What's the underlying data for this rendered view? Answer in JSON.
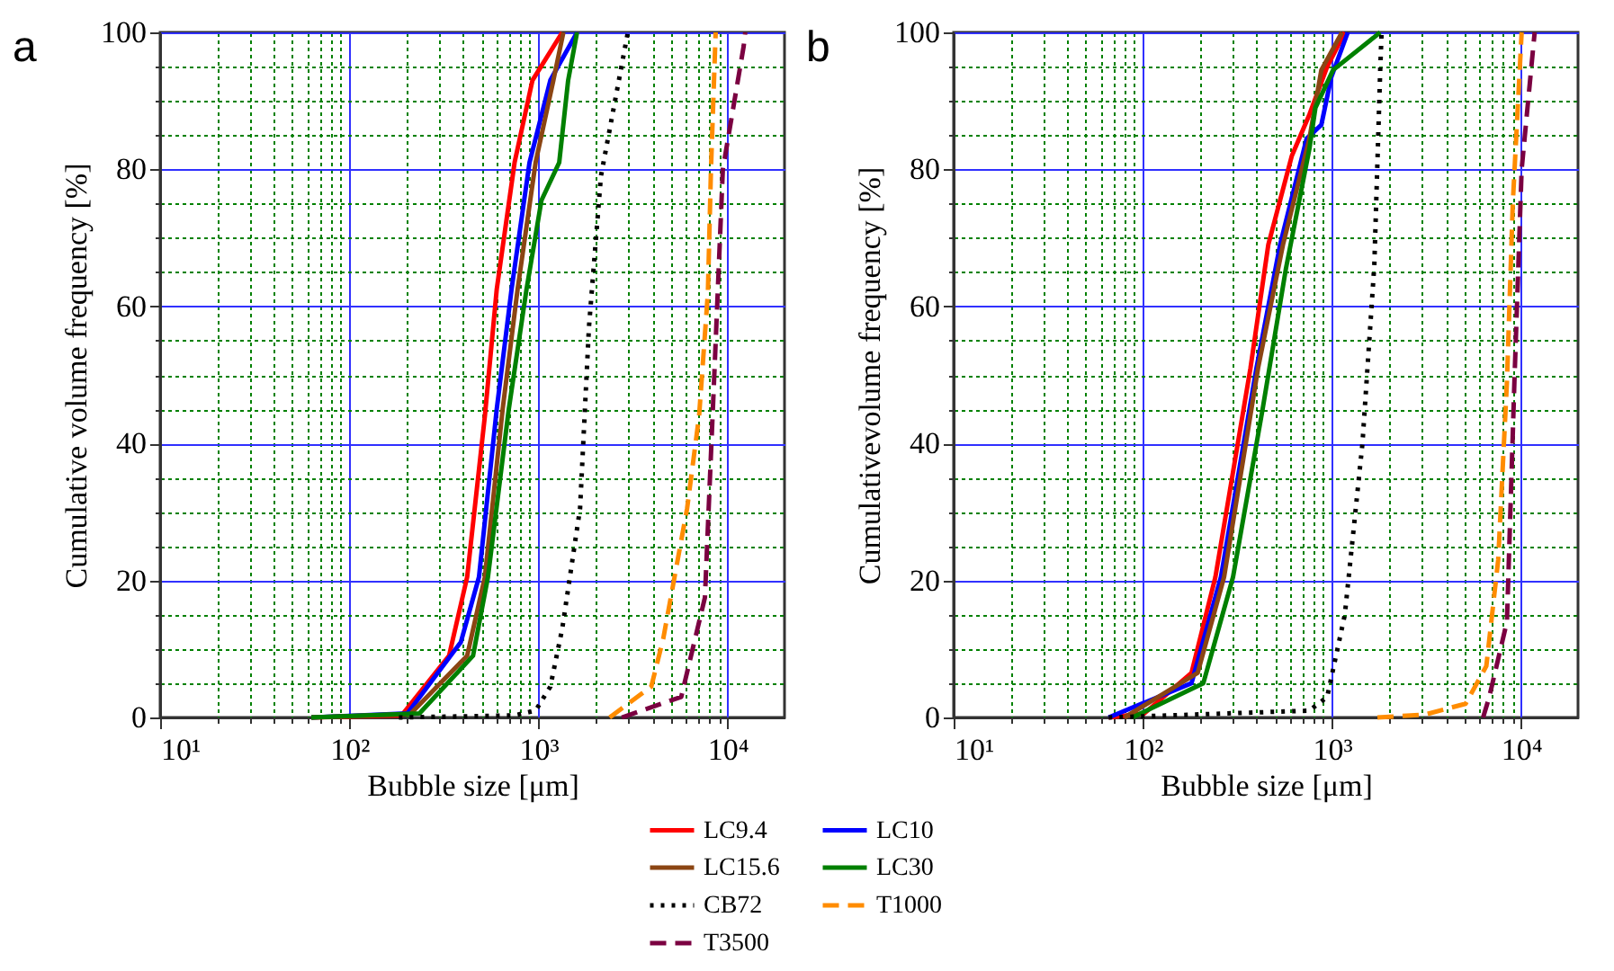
{
  "chart_data": [
    {
      "type": "line",
      "title": "a",
      "xlabel": "Bubble size [μm]",
      "ylabel": "Cumulative volume frequency [%]",
      "log": "x",
      "xlim": [
        10,
        20000
      ],
      "ylim": [
        0,
        100
      ],
      "xticks": [
        {
          "value": 10,
          "label": "10¹"
        },
        {
          "value": 100,
          "label": "10²"
        },
        {
          "value": 1000,
          "label": "10³"
        },
        {
          "value": 10000,
          "label": "10⁴"
        },
        {
          "value": 20,
          "label": null
        },
        {
          "value": 30,
          "label": null
        },
        {
          "value": 40,
          "label": null
        },
        {
          "value": 50,
          "label": null
        },
        {
          "value": 60,
          "label": null
        },
        {
          "value": 70,
          "label": null
        },
        {
          "value": 80,
          "label": null
        },
        {
          "value": 90,
          "label": null
        },
        {
          "value": 200,
          "label": null
        },
        {
          "value": 300,
          "label": null
        },
        {
          "value": 400,
          "label": null
        },
        {
          "value": 500,
          "label": null
        },
        {
          "value": 600,
          "label": null
        },
        {
          "value": 700,
          "label": null
        },
        {
          "value": 800,
          "label": null
        },
        {
          "value": 900,
          "label": null
        },
        {
          "value": 2000,
          "label": null
        },
        {
          "value": 3000,
          "label": null
        },
        {
          "value": 4000,
          "label": null
        },
        {
          "value": 5000,
          "label": null
        },
        {
          "value": 6000,
          "label": null
        },
        {
          "value": 7000,
          "label": null
        },
        {
          "value": 8000,
          "label": null
        },
        {
          "value": 9000,
          "label": null
        }
      ],
      "yticks": [
        0,
        20,
        40,
        60,
        80,
        100,
        {
          "value": 5,
          "label": null
        },
        {
          "value": 10,
          "label": null
        },
        {
          "value": 15,
          "label": null
        },
        {
          "value": 25,
          "label": null
        },
        {
          "value": 30,
          "label": null
        },
        {
          "value": 35,
          "label": null
        },
        {
          "value": 45,
          "label": null
        },
        {
          "value": 50,
          "label": null
        },
        {
          "value": 55,
          "label": null
        },
        {
          "value": 65,
          "label": null
        },
        {
          "value": 70,
          "label": null
        },
        {
          "value": 75,
          "label": null
        },
        {
          "value": 85,
          "label": null
        },
        {
          "value": 90,
          "label": null
        },
        {
          "value": 95,
          "label": null
        }
      ],
      "grid": true,
      "legend": "bottom",
      "marker": "none",
      "series": [
        {
          "name": "LC9.4",
          "color": "#ff0000",
          "line_style": "solid",
          "x": [
            63,
            189,
            337,
            420,
            521,
            602,
            748,
            930,
            1337
          ],
          "values": [
            0,
            0.3,
            9,
            20.5,
            44,
            62.5,
            81,
            93,
            100
          ]
        },
        {
          "name": "LC10",
          "color": "#0000ff",
          "line_style": "solid",
          "x": [
            63,
            203,
            389,
            485,
            602,
            721,
            897,
            1156,
            1600
          ],
          "values": [
            0,
            0.6,
            11,
            20.5,
            45,
            62.5,
            81,
            93,
            100
          ]
        },
        {
          "name": "LC15.6",
          "color": "#8b4513",
          "line_style": "solid",
          "x": [
            63,
            210,
            420,
            521,
            647,
            776,
            966,
            1200,
            1355
          ],
          "values": [
            0,
            0.5,
            9,
            20.5,
            45,
            62.5,
            81,
            93,
            100
          ]
        },
        {
          "name": "LC30",
          "color": "#008000",
          "line_style": "solid",
          "x": [
            63,
            235,
            451,
            541,
            697,
            865,
            1038,
            1288,
            1436,
            1600
          ],
          "values": [
            0,
            0.6,
            9,
            20.5,
            45,
            62.5,
            75.5,
            81,
            93,
            100
          ]
        },
        {
          "name": "CB72",
          "color": "#000000",
          "line_style": "dotted",
          "x": [
            183,
            748,
            966,
            1156,
            1337,
            1660,
            1850,
            2140,
            2970
          ],
          "values": [
            0,
            0.3,
            1,
            4.5,
            13,
            30.5,
            57,
            79,
            100
          ]
        },
        {
          "name": "T1000",
          "color": "#ff8c00",
          "line_style": "dashed",
          "x": [
            2380,
            3950,
            4570,
            6110,
            7070,
            7870,
            8170,
            8650
          ],
          "values": [
            0,
            4.5,
            11.5,
            30.5,
            44,
            62,
            80,
            100
          ]
        },
        {
          "name": "T3500",
          "color": "#7b0041",
          "line_style": "dashed",
          "x": [
            2760,
            5690,
            7590,
            8450,
            9440,
            12170,
            12400
          ],
          "values": [
            0,
            3,
            17.5,
            48,
            80,
            98,
            100
          ]
        }
      ]
    },
    {
      "type": "line",
      "title": "b",
      "xlabel": "Bubble size [μm]",
      "ylabel": "Cumulativevolume frequency [%]",
      "log": "x",
      "xlim": [
        10,
        20000
      ],
      "ylim": [
        0,
        100
      ],
      "xticks": [
        {
          "value": 10,
          "label": "10¹"
        },
        {
          "value": 100,
          "label": "10²"
        },
        {
          "value": 1000,
          "label": "10³"
        },
        {
          "value": 10000,
          "label": "10⁴"
        },
        {
          "value": 20,
          "label": null
        },
        {
          "value": 30,
          "label": null
        },
        {
          "value": 40,
          "label": null
        },
        {
          "value": 50,
          "label": null
        },
        {
          "value": 60,
          "label": null
        },
        {
          "value": 70,
          "label": null
        },
        {
          "value": 80,
          "label": null
        },
        {
          "value": 90,
          "label": null
        },
        {
          "value": 200,
          "label": null
        },
        {
          "value": 300,
          "label": null
        },
        {
          "value": 400,
          "label": null
        },
        {
          "value": 500,
          "label": null
        },
        {
          "value": 600,
          "label": null
        },
        {
          "value": 700,
          "label": null
        },
        {
          "value": 800,
          "label": null
        },
        {
          "value": 900,
          "label": null
        },
        {
          "value": 2000,
          "label": null
        },
        {
          "value": 3000,
          "label": null
        },
        {
          "value": 4000,
          "label": null
        },
        {
          "value": 5000,
          "label": null
        },
        {
          "value": 6000,
          "label": null
        },
        {
          "value": 7000,
          "label": null
        },
        {
          "value": 8000,
          "label": null
        },
        {
          "value": 9000,
          "label": null
        }
      ],
      "yticks": [
        0,
        20,
        40,
        60,
        80,
        100,
        {
          "value": 5,
          "label": null
        },
        {
          "value": 10,
          "label": null
        },
        {
          "value": 15,
          "label": null
        },
        {
          "value": 25,
          "label": null
        },
        {
          "value": 30,
          "label": null
        },
        {
          "value": 35,
          "label": null
        },
        {
          "value": 45,
          "label": null
        },
        {
          "value": 50,
          "label": null
        },
        {
          "value": 55,
          "label": null
        },
        {
          "value": 65,
          "label": null
        },
        {
          "value": 70,
          "label": null
        },
        {
          "value": 75,
          "label": null
        },
        {
          "value": 85,
          "label": null
        },
        {
          "value": 90,
          "label": null
        },
        {
          "value": 95,
          "label": null
        }
      ],
      "grid": true,
      "legend": "bottom",
      "marker": "none",
      "series": [
        {
          "name": "LC9.4",
          "color": "#ff0000",
          "line_style": "solid",
          "x": [
            66,
            102,
            181,
            242,
            371,
            461,
            614,
            760,
            944,
            1170
          ],
          "values": [
            0,
            0.6,
            6.5,
            20.5,
            51,
            69,
            82,
            88,
            95,
            100
          ]
        },
        {
          "name": "LC10",
          "color": "#0000ff",
          "line_style": "solid",
          "x": [
            66,
            181,
            259,
            399,
            532,
            735,
            879,
            993,
            1213
          ],
          "values": [
            0,
            5,
            20.5,
            51,
            69,
            84.5,
            86.5,
            93.5,
            100
          ]
        },
        {
          "name": "LC15.6",
          "color": "#8b4513",
          "line_style": "solid",
          "x": [
            80,
            195,
            269,
            407,
            551,
            760,
            879,
            1130
          ],
          "values": [
            0,
            6.5,
            20.5,
            51,
            69,
            84.5,
            94.5,
            100
          ]
        },
        {
          "name": "LC30",
          "color": "#008000",
          "line_style": "solid",
          "x": [
            88,
            209,
            300,
            430,
            571,
            760,
            818,
            1014,
            1800
          ],
          "values": [
            0,
            5,
            20.5,
            45,
            65.5,
            83,
            89,
            94.5,
            100
          ]
        },
        {
          "name": "CB72",
          "color": "#000000",
          "line_style": "dotted",
          "x": [
            66,
            760,
            944,
            1170,
            1450,
            1675,
            1800,
            1830
          ],
          "values": [
            0,
            1,
            3,
            15,
            40,
            66,
            94.5,
            100
          ]
        },
        {
          "name": "T1000",
          "color": "#ff8c00",
          "line_style": "dashed",
          "x": [
            1740,
            3080,
            5090,
            6550,
            7570,
            8420,
            9040,
            10070
          ],
          "values": [
            0,
            0.4,
            2,
            7.5,
            23,
            49,
            75,
            100
          ]
        },
        {
          "name": "T3500",
          "color": "#7b0041",
          "line_style": "dashed",
          "x": [
            6300,
            6790,
            8420,
            9220,
            10070,
            11610,
            11800
          ],
          "values": [
            0,
            3,
            14,
            49,
            80,
            98,
            100
          ]
        }
      ]
    }
  ]
}
